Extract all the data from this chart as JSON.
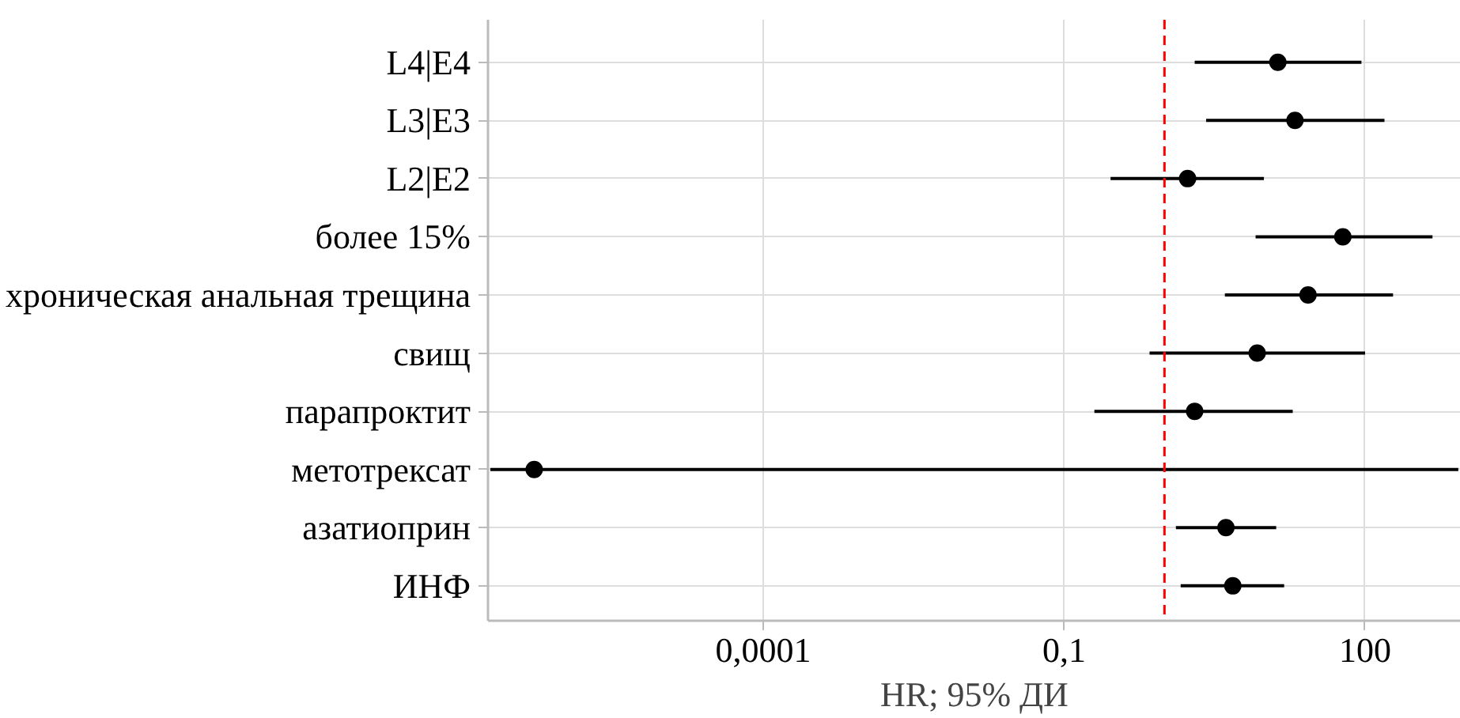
{
  "chart_data": {
    "type": "scatter",
    "orientation": "horizontal",
    "xlabel": "HR; 95% ДИ",
    "categories": [
      "L4|E4",
      "L3|E3",
      "L2|E2",
      "более 15%",
      "хроническая анальная трещина",
      "свищ",
      "парапроктит",
      "метотрексат",
      "азатиоприн",
      "ИНФ"
    ],
    "values": [
      13.5,
      20,
      1.7,
      60,
      27,
      8.4,
      2.0,
      5.2e-07,
      4.1,
      4.8
    ],
    "errors": [
      [
        2.0,
        92
      ],
      [
        2.6,
        156
      ],
      [
        0.29,
        9.8
      ],
      [
        8.1,
        470
      ],
      [
        4.0,
        190
      ],
      [
        0.71,
        100
      ],
      [
        0.2,
        19
      ],
      [
        1.9e-07,
        850
      ],
      [
        1.3,
        13
      ],
      [
        1.45,
        15.6
      ]
    ],
    "color": "#000000",
    "marker": "circle",
    "log": "x",
    "xlim": [
      1.8e-07,
      900
    ],
    "xticks": [
      {
        "value": 0.0001,
        "label": "0,0001"
      },
      {
        "value": 0.1,
        "label": "0,1"
      },
      100
    ],
    "ref_lines": [
      {
        "axis": "x",
        "value": 1,
        "color": "#ff0000",
        "line_style": "dashed"
      }
    ],
    "grid": true
  }
}
